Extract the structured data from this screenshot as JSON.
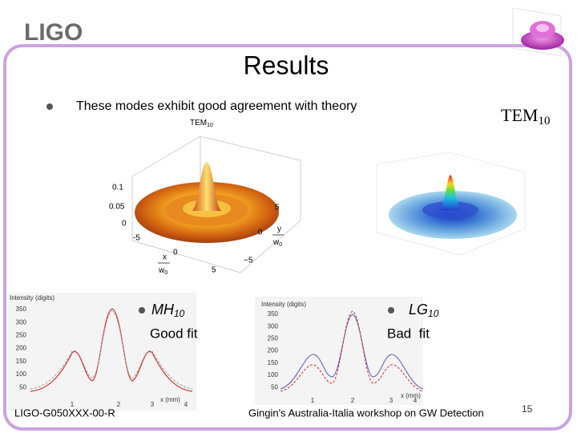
{
  "header": {
    "logo": "LIGO",
    "title": "Results"
  },
  "bullet": "These modes exhibit good agreement with theory",
  "mode_label": {
    "name": "TEM",
    "index": "10"
  },
  "surface_plot": {
    "title": "TEM",
    "title_index": "10",
    "z_ticks": [
      "0.1",
      "0.05",
      "0"
    ],
    "x_ticks": [
      "-5",
      "0",
      "5"
    ],
    "y_ticks": [
      "5",
      "0",
      "−5"
    ],
    "y_label": "y",
    "y_unit": "w",
    "y_unit_index": "0",
    "x_label": "x",
    "x_unit": "w",
    "x_unit_index": "0"
  },
  "profiles": [
    {
      "y_label": "Intensity (digits)",
      "x_label": "x (mm)",
      "yticks": [
        350,
        300,
        250,
        200,
        150,
        100,
        50
      ],
      "xticks": [
        1,
        2,
        3,
        4
      ],
      "legend": {
        "name": "MH",
        "index": "10",
        "verdict": "Good fit"
      }
    },
    {
      "y_label": "Intensity (digits)",
      "x_label": "x (mm)",
      "yticks": [
        350,
        300,
        250,
        200,
        150,
        100,
        50
      ],
      "xticks": [
        1,
        2,
        3,
        4
      ],
      "legend": {
        "name": "LG",
        "index": "10",
        "verdict": "Bad  fit"
      }
    }
  ],
  "footer": {
    "id": "LIGO-G050XXX-00-R",
    "event": "Gingin's Australia-Italia workshop on GW Detection",
    "page": "15"
  }
}
